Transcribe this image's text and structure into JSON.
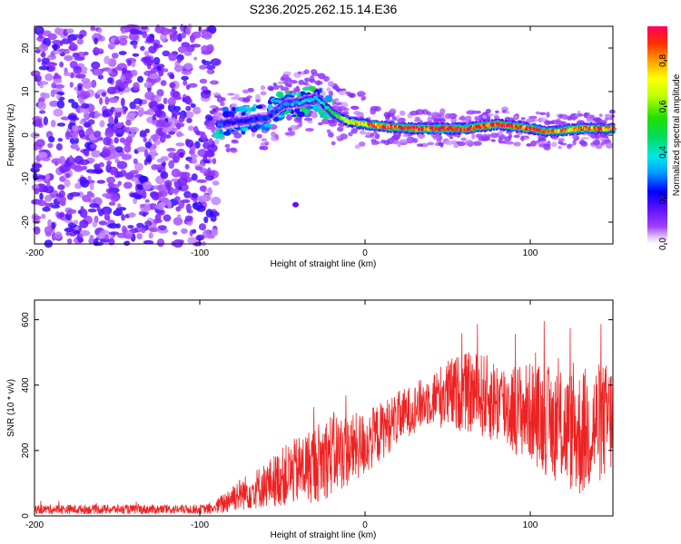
{
  "page_title": "S236.2025.262.15.14.E36",
  "colors": {
    "snr_line": "#ee2222",
    "background": "#ffffff",
    "axis": "#000000",
    "spectrum_track": "#ee2222"
  },
  "chart_data": [
    {
      "type": "heatmap",
      "title": "S236.2025.262.15.14.E36",
      "xlabel": "Height of straight line (km)",
      "ylabel": "Frequency (Hz)",
      "xlim": [
        -200,
        150
      ],
      "ylim": [
        -25,
        25
      ],
      "x_ticks": [
        "-200",
        "-100",
        "0",
        "100"
      ],
      "x_tick_values": [
        -200,
        -100,
        0,
        100
      ],
      "y_ticks": [
        "-20",
        "-10",
        "0",
        "10",
        "20"
      ],
      "y_tick_values": [
        -20,
        -10,
        0,
        10,
        20
      ],
      "colorbar": {
        "label": "Normalized spectral amplitude",
        "ticks": [
          "0.0",
          "0.2",
          "0.4",
          "0.6",
          "0.8"
        ],
        "tick_values": [
          0.0,
          0.2,
          0.4,
          0.6,
          0.8
        ],
        "range": [
          0.0,
          0.95
        ],
        "colormap": "rainbow"
      },
      "features": {
        "noise_region_x": [
          -200,
          -90
        ],
        "noise_amplitude": [
          0.05,
          0.2
        ],
        "emergence_x": -90,
        "track": [
          {
            "x": -90,
            "f": 2.5,
            "a": 0.28
          },
          {
            "x": -80,
            "f": 3.0,
            "a": 0.22
          },
          {
            "x": -60,
            "f": 4.0,
            "a": 0.25
          },
          {
            "x": -50,
            "f": 7.0,
            "a": 0.3
          },
          {
            "x": -40,
            "f": 7.5,
            "a": 0.35
          },
          {
            "x": -30,
            "f": 8.5,
            "a": 0.35
          },
          {
            "x": -20,
            "f": 5.0,
            "a": 0.5
          },
          {
            "x": -10,
            "f": 3.0,
            "a": 0.7
          },
          {
            "x": 0,
            "f": 2.5,
            "a": 0.8
          },
          {
            "x": 10,
            "f": 2.0,
            "a": 0.85
          },
          {
            "x": 30,
            "f": 1.5,
            "a": 0.9
          },
          {
            "x": 60,
            "f": 1.5,
            "a": 0.9
          },
          {
            "x": 80,
            "f": 2.5,
            "a": 0.9
          },
          {
            "x": 100,
            "f": 1.5,
            "a": 0.88
          },
          {
            "x": 110,
            "f": 0.8,
            "a": 0.8
          },
          {
            "x": 130,
            "f": 1.5,
            "a": 0.85
          },
          {
            "x": 150,
            "f": 1.5,
            "a": 0.8
          }
        ],
        "isolated_blob": {
          "x": -42,
          "f": -16,
          "a": 0.15
        }
      }
    },
    {
      "type": "line",
      "title": "",
      "xlabel": "Height of straight line (km)",
      "ylabel": "SNR (10 * v/v)",
      "xlim": [
        -200,
        150
      ],
      "ylim": [
        0,
        660
      ],
      "x_ticks": [
        "-200",
        "-100",
        "0",
        "100"
      ],
      "x_tick_values": [
        -200,
        -100,
        0,
        100
      ],
      "y_ticks": [
        "0",
        "200",
        "400",
        "600"
      ],
      "y_tick_values": [
        0,
        200,
        400,
        600
      ],
      "series": [
        {
          "name": "SNR",
          "envelope": {
            "x": [
              -200,
              -150,
              -100,
              -92,
              -85,
              -80,
              -70,
              -60,
              -50,
              -40,
              -30,
              -20,
              -10,
              0,
              10,
              20,
              30,
              40,
              50,
              60,
              70,
              80,
              90,
              100,
              110,
              120,
              130,
              140,
              150
            ],
            "mean": [
              20,
              20,
              20,
              22,
              40,
              60,
              75,
              95,
              120,
              140,
              160,
              190,
              200,
              220,
              260,
              300,
              330,
              360,
              370,
              380,
              370,
              350,
              330,
              320,
              290,
              270,
              250,
              280,
              300
            ],
            "spread": [
              14,
              14,
              14,
              16,
              35,
              45,
              55,
              70,
              90,
              105,
              120,
              130,
              110,
              100,
              90,
              80,
              75,
              80,
              110,
              120,
              130,
              130,
              140,
              150,
              170,
              180,
              200,
              190,
              170
            ]
          }
        }
      ]
    }
  ]
}
